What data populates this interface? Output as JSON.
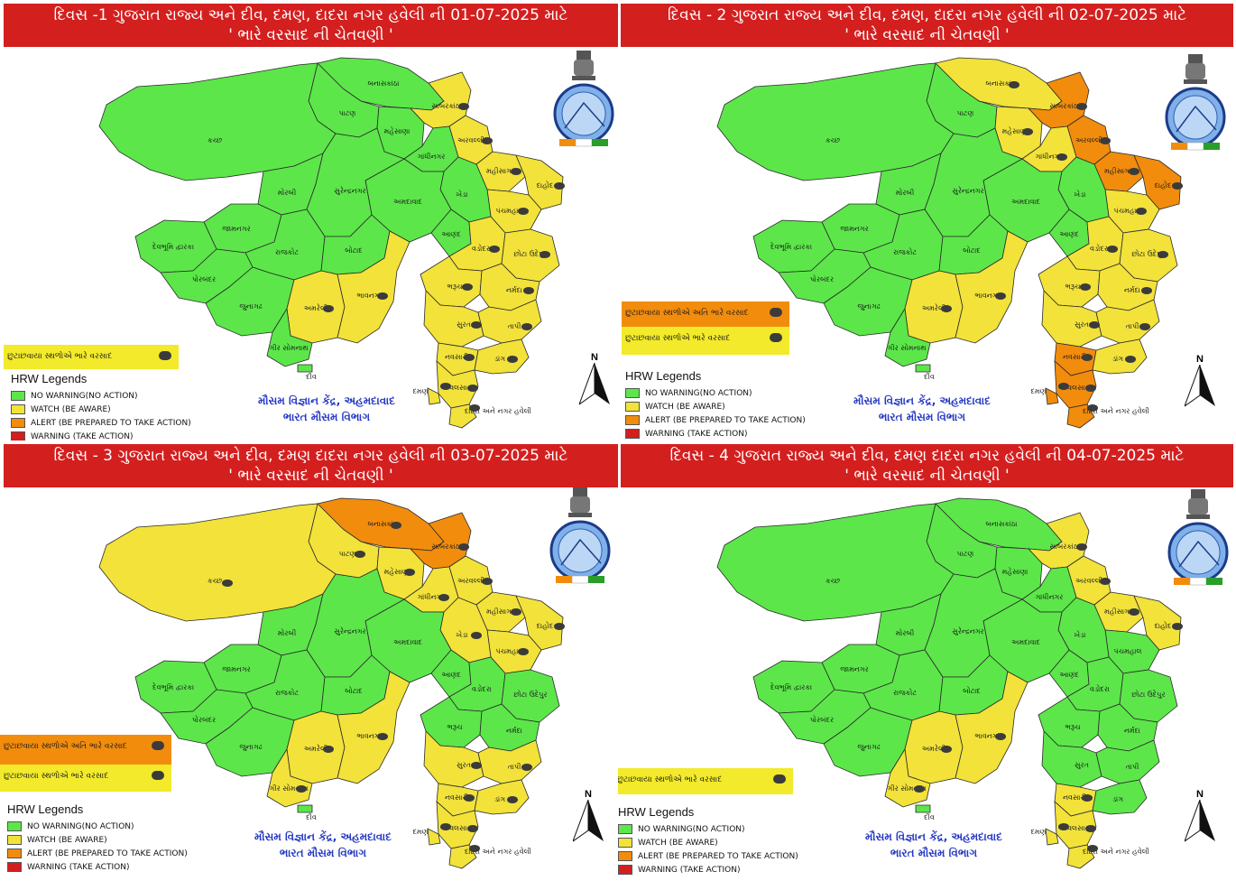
{
  "colors": {
    "no_warning": "#5ce64a",
    "watch": "#f2e23a",
    "alert": "#f28c0d",
    "warning": "#d41f1f",
    "title_bg": "#d41f1f",
    "center_text": "#2438c2"
  },
  "legend": {
    "heading": "HRW Legends",
    "items": [
      {
        "label": "NO WARNING(NO ACTION)",
        "color": "#5ce64a"
      },
      {
        "label": "WATCH (BE AWARE)",
        "color": "#f2e23a"
      },
      {
        "label": "ALERT (BE PREPARED TO TAKE ACTION)",
        "color": "#f28c0d"
      },
      {
        "label": "WARNING (TAKE ACTION)",
        "color": "#d41f1f"
      }
    ]
  },
  "remarks": {
    "heavy": "છુટાછવાયા સ્થળોએ ભારે વરસાદ",
    "very_heavy": "છુટાછવાયા સ્થળોએ અતિ ભારે વરસાદ"
  },
  "center": {
    "line1": "મૌસમ વિજ્ઞાન કેંદ્ર, અહમદાવાદ",
    "line2": "ભારત મૌસમ વિભાગ"
  },
  "north_label": "N",
  "logo_icon": "imd-emblem-icon",
  "districts": [
    {
      "name": "બનાસકાંઠા"
    },
    {
      "name": "પાટણ"
    },
    {
      "name": "મહેસાણા"
    },
    {
      "name": "સાબરકાંઠા"
    },
    {
      "name": "અરવલ્લી"
    },
    {
      "name": "ગાંધીનગર"
    },
    {
      "name": "મહીસાગર"
    },
    {
      "name": "દાહોદ"
    },
    {
      "name": "પંચમહાલ"
    },
    {
      "name": "ખેડા"
    },
    {
      "name": "અમદાવાદ"
    },
    {
      "name": "આણંદ"
    },
    {
      "name": "વડોદરા"
    },
    {
      "name": "છોટા ઉદેપુર"
    },
    {
      "name": "ભરૂચ"
    },
    {
      "name": "નર્મદા"
    },
    {
      "name": "સુરત"
    },
    {
      "name": "તાપી"
    },
    {
      "name": "નવસારી"
    },
    {
      "name": "ડાંગ"
    },
    {
      "name": "વલસાડ"
    },
    {
      "name": "કચ્છ"
    },
    {
      "name": "મોરબી"
    },
    {
      "name": "સુરેન્દ્રનગર"
    },
    {
      "name": "જામનગર"
    },
    {
      "name": "દેવભૂમિ દ્વારકા"
    },
    {
      "name": "રાજકોટ"
    },
    {
      "name": "બોટાદ"
    },
    {
      "name": "પોરબંદર"
    },
    {
      "name": "જુનાગઢ"
    },
    {
      "name": "અમરેલી"
    },
    {
      "name": "ભાવનગર"
    },
    {
      "name": "ગીર સોમનાથ"
    },
    {
      "name": "દીવ"
    },
    {
      "name": "દમણ"
    },
    {
      "name": "દાદરા અને નગર હવેલી"
    }
  ],
  "panels": [
    {
      "title_line1": "દિવસ -1 ગુજરાત રાજ્ય અને દીવ, દમણ, દાદરા નગર હવેલી ની 01-07-2025 માટે",
      "title_line2": "' ભારે વરસાદ ની ચેતવણી '",
      "levels": [
        "no_warning",
        "no_warning",
        "no_warning",
        "watch",
        "watch",
        "no_warning",
        "watch",
        "watch",
        "watch",
        "no_warning",
        "no_warning",
        "no_warning",
        "watch",
        "watch",
        "watch",
        "watch",
        "watch",
        "watch",
        "watch",
        "watch",
        "watch",
        "no_warning",
        "no_warning",
        "no_warning",
        "no_warning",
        "no_warning",
        "no_warning",
        "no_warning",
        "no_warning",
        "no_warning",
        "watch",
        "watch",
        "no_warning",
        "no_warning",
        "watch",
        "watch"
      ]
    },
    {
      "title_line1": "દિવસ - 2 ગુજરાત રાજ્ય અને દીવ, દમણ, દાદરા નગર હવેલી ની 02-07-2025 માટે",
      "title_line2": "' ભારે વરસાદ ની ચેતવણી '",
      "levels": [
        "watch",
        "no_warning",
        "watch",
        "alert",
        "alert",
        "watch",
        "alert",
        "alert",
        "watch",
        "no_warning",
        "no_warning",
        "no_warning",
        "watch",
        "watch",
        "watch",
        "watch",
        "watch",
        "watch",
        "alert",
        "watch",
        "alert",
        "no_warning",
        "no_warning",
        "no_warning",
        "no_warning",
        "no_warning",
        "no_warning",
        "no_warning",
        "no_warning",
        "no_warning",
        "watch",
        "watch",
        "no_warning",
        "no_warning",
        "alert",
        "alert"
      ]
    },
    {
      "title_line1": "દિવસ - 3 ગુજરાત રાજ્ય અને દીવ, દમણ દાદરા નગર હવેલી ની 03-07-2025 માટે",
      "title_line2": "' ભારે વરસાદ ની ચેતવણી '",
      "levels": [
        "alert",
        "watch",
        "watch",
        "alert",
        "watch",
        "watch",
        "watch",
        "watch",
        "watch",
        "watch",
        "no_warning",
        "no_warning",
        "no_warning",
        "no_warning",
        "no_warning",
        "no_warning",
        "watch",
        "watch",
        "watch",
        "watch",
        "watch",
        "watch",
        "no_warning",
        "no_warning",
        "no_warning",
        "no_warning",
        "no_warning",
        "no_warning",
        "no_warning",
        "no_warning",
        "watch",
        "watch",
        "watch",
        "no_warning",
        "watch",
        "watch"
      ]
    },
    {
      "title_line1": "દિવસ - 4 ગુજરાત રાજ્ય અને દીવ, દમણ દાદરા નગર હવેલી ની 04-07-2025 માટે",
      "title_line2": "' ભારે વરસાદ ની ચેતવણી '",
      "levels": [
        "no_warning",
        "no_warning",
        "no_warning",
        "watch",
        "watch",
        "no_warning",
        "watch",
        "watch",
        "no_warning",
        "no_warning",
        "no_warning",
        "no_warning",
        "no_warning",
        "no_warning",
        "no_warning",
        "no_warning",
        "no_warning",
        "no_warning",
        "watch",
        "no_warning",
        "watch",
        "no_warning",
        "no_warning",
        "no_warning",
        "no_warning",
        "no_warning",
        "no_warning",
        "no_warning",
        "no_warning",
        "no_warning",
        "watch",
        "watch",
        "watch",
        "no_warning",
        "watch",
        "watch"
      ]
    }
  ]
}
